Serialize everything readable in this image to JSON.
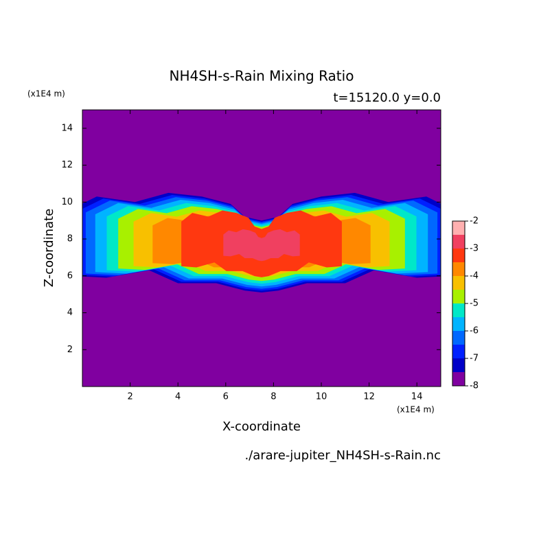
{
  "chart_data": {
    "type": "contour",
    "title": "NH4SH-s-Rain Mixing Ratio",
    "subtitle": "t=15120.0 y=0.0",
    "x_label": "X-coordinate",
    "y_label": "Z-coordinate",
    "x_unit": "(x1E4 m)",
    "y_unit": "(x1E4 m)",
    "footer": "./arare-jupiter_NH4SH-s-Rain.nc",
    "xlim": [
      0,
      15
    ],
    "xticks": [
      2,
      4,
      6,
      8,
      10,
      12,
      14
    ],
    "ylim": [
      0,
      15
    ],
    "yticks": [
      2,
      4,
      6,
      8,
      10,
      12,
      14
    ],
    "levels": [
      -8,
      -7.5,
      -7,
      -6.5,
      -6,
      -5.5,
      -5,
      -4.5,
      -4,
      -3.5,
      -3,
      -2.5,
      -2
    ],
    "colors": [
      "#8000a0",
      "#0000c8",
      "#0020ff",
      "#0068ff",
      "#00b4ff",
      "#00e8c8",
      "#a8f000",
      "#f8c000",
      "#ff8800",
      "#ff3810",
      "#f04060",
      "#ffb0b0"
    ],
    "colorbar_ticks": [
      -8,
      -7,
      -6,
      -5,
      -4,
      -3,
      -2
    ]
  }
}
